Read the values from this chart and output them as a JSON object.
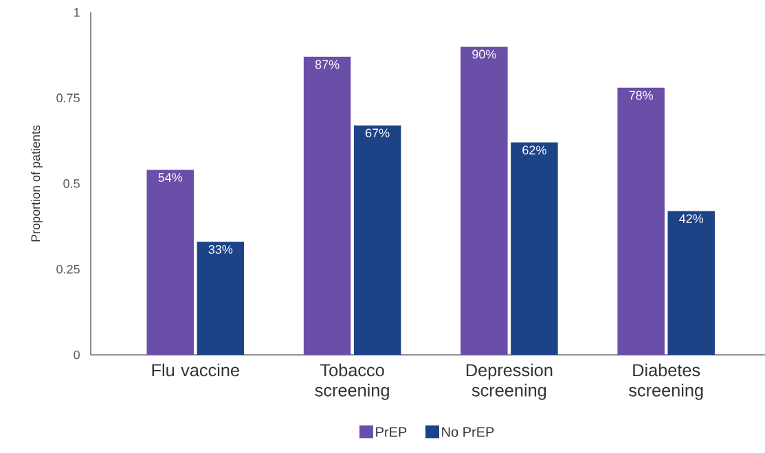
{
  "chart_data": {
    "type": "bar",
    "ylabel": "Proportion of patients",
    "categories": [
      "Flu vaccine",
      "Tobacco screening",
      "Depression screening",
      "Diabetes screening"
    ],
    "series": [
      {
        "name": "PrEP",
        "color": "#6a4fa8",
        "values": [
          0.54,
          0.87,
          0.9,
          0.78
        ],
        "value_labels": [
          "54%",
          "87%",
          "90%",
          "78%"
        ]
      },
      {
        "name": "No PrEP",
        "color": "#1d4387",
        "values": [
          0.33,
          0.67,
          0.62,
          0.42
        ],
        "value_labels": [
          "33%",
          "67%",
          "62%",
          "42%"
        ]
      }
    ],
    "ylim": [
      0,
      1
    ],
    "yticks": [
      0,
      0.25,
      0.5,
      0.75,
      1
    ],
    "legend": "bottom"
  }
}
